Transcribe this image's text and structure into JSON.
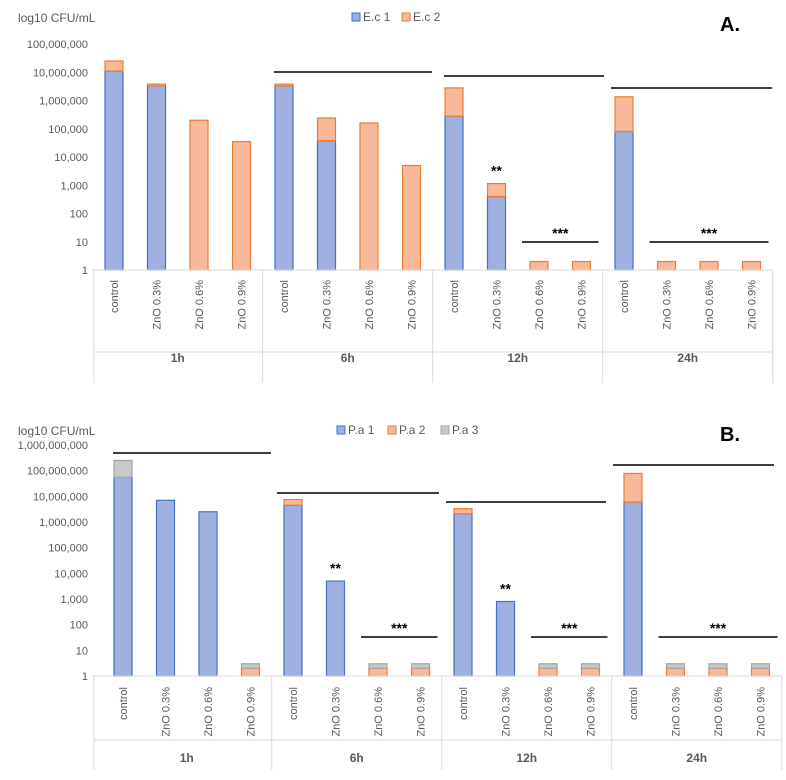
{
  "chart_data": [
    {
      "panel": "A.",
      "type": "bar",
      "stacked": true,
      "scale": "log10",
      "ylabel": "log10 CFU/mL",
      "ylim": [
        1,
        100000000
      ],
      "y_ticks": [
        1,
        10,
        100,
        1000,
        10000,
        100000,
        1000000,
        10000000,
        100000000
      ],
      "y_tick_labels": [
        "1",
        "10",
        "100",
        "1,000",
        "10,000",
        "100,000",
        "1,000,000",
        "10,000,000",
        "100,000,000"
      ],
      "groups": [
        "1h",
        "6h",
        "12h",
        "24h"
      ],
      "categories": [
        "control",
        "ZnO 0.3%",
        "ZnO 0.6%",
        "ZnO 0.9%"
      ],
      "legend": [
        "E.c 1",
        "E.c 2"
      ],
      "series_colors": [
        "#9fb0e0",
        "#f8b89a"
      ],
      "series_borders": [
        "#4472c4",
        "#ed7d31"
      ],
      "bars": [
        [
          11000000,
          25000000
        ],
        [
          3300000,
          3800000
        ],
        [
          1,
          200000
        ],
        [
          1,
          35000
        ],
        [
          3300000,
          3800000
        ],
        [
          38000,
          240000
        ],
        [
          1,
          160000
        ],
        [
          1,
          5000
        ],
        [
          280000,
          2800000
        ],
        [
          400,
          1150
        ],
        [
          1,
          2
        ],
        [
          1,
          2
        ],
        [
          80000,
          1350000
        ],
        [
          1,
          2
        ],
        [
          1,
          2
        ],
        [
          1,
          2
        ]
      ],
      "significance": [
        {
          "label": "**",
          "bar": 9
        },
        {
          "label": "***",
          "from": 10,
          "to": 11
        },
        {
          "label": "***",
          "from": 13,
          "to": 15
        }
      ]
    },
    {
      "panel": "B.",
      "type": "bar",
      "stacked": true,
      "scale": "log10",
      "ylabel": "log10 CFU/mL",
      "ylim": [
        1,
        1000000000
      ],
      "y_ticks": [
        1,
        10,
        100,
        1000,
        10000,
        100000,
        1000000,
        10000000,
        100000000,
        1000000000
      ],
      "y_tick_labels": [
        "1",
        "10",
        "100",
        "1,000",
        "10,000",
        "100,000",
        "1,000,000",
        "10,000,000",
        "100,000,000",
        "1,000,000,000"
      ],
      "groups": [
        "1h",
        "6h",
        "12h",
        "24h"
      ],
      "categories": [
        "control",
        "ZnO 0.3%",
        "ZnO 0.6%",
        "ZnO 0.9%"
      ],
      "legend": [
        "P.a 1",
        "P.a 2",
        "P.a 3"
      ],
      "series_colors": [
        "#9fb0e0",
        "#f8b89a",
        "#c9c9c9"
      ],
      "series_borders": [
        "#4472c4",
        "#ed7d31",
        "#a5a5a5"
      ],
      "bars": [
        [
          55000000,
          55000000,
          250000000
        ],
        [
          7000000,
          7000000,
          7000000
        ],
        [
          2500000,
          2500000,
          2500000
        ],
        [
          1,
          2,
          3
        ],
        [
          4500000,
          7500000,
          7500000
        ],
        [
          5000,
          5000,
          5000
        ],
        [
          1,
          2,
          3
        ],
        [
          1,
          2,
          3
        ],
        [
          2100000,
          3300000,
          3300000
        ],
        [
          800,
          800,
          800
        ],
        [
          1,
          2,
          3
        ],
        [
          1,
          2,
          3
        ],
        [
          6000000,
          78000000,
          78000000
        ],
        [
          1,
          2,
          3
        ],
        [
          1,
          2,
          3
        ],
        [
          1,
          2,
          3
        ]
      ],
      "significance": [
        {
          "label": "**",
          "bar": 5
        },
        {
          "label": "***",
          "from": 6,
          "to": 7
        },
        {
          "label": "**",
          "bar": 9
        },
        {
          "label": "***",
          "from": 10,
          "to": 11
        },
        {
          "label": "***",
          "from": 13,
          "to": 15
        }
      ]
    }
  ]
}
